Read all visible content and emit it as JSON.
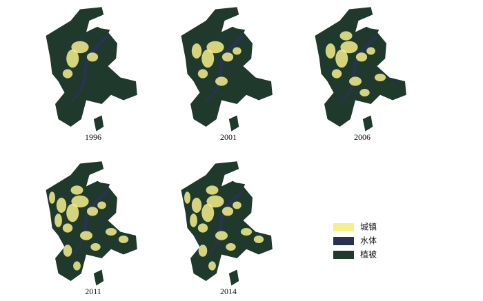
{
  "maps": [
    {
      "year": "1996"
    },
    {
      "year": "2001"
    },
    {
      "year": "2006"
    },
    {
      "year": "2011"
    },
    {
      "year": "2014"
    }
  ],
  "legend": [
    {
      "label": "城镇",
      "color": "#f7ef8c"
    },
    {
      "label": "水体",
      "color": "#2a3250"
    },
    {
      "label": "植被",
      "color": "#1f3a2c"
    }
  ]
}
